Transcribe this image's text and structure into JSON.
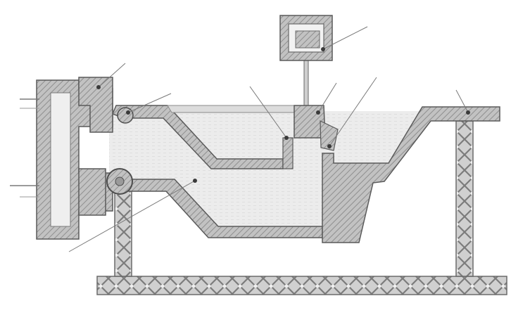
{
  "figure": {
    "description_visible_text": "",
    "callouts": [
      {
        "id": "c1",
        "label": ""
      },
      {
        "id": "c2",
        "label": ""
      },
      {
        "id": "c3",
        "label": ""
      },
      {
        "id": "c4",
        "label": ""
      },
      {
        "id": "c5",
        "label": ""
      },
      {
        "id": "c6",
        "label": ""
      },
      {
        "id": "c7",
        "label": ""
      },
      {
        "id": "c8",
        "label": ""
      },
      {
        "id": "c9",
        "label": ""
      }
    ]
  },
  "colors": {
    "hatch_fill": "#b4b4b4",
    "hatch_stroke": "#8c8c8c",
    "outline": "#5a5a5a",
    "liquid": "#e9e9e9",
    "background": "#ffffff"
  }
}
